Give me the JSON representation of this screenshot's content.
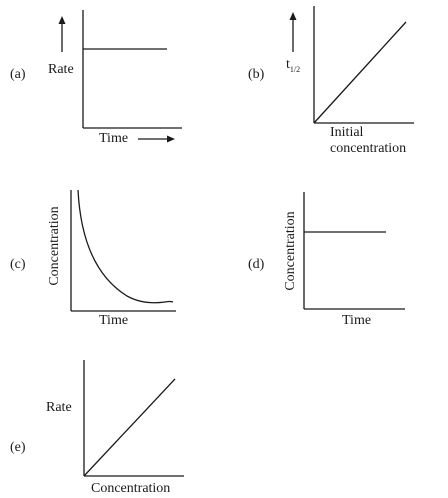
{
  "panels": [
    {
      "tag": "(a)",
      "y_label": "Rate",
      "x_label": "Time",
      "chart_data": {
        "type": "line",
        "shape": "constant",
        "ylabel": "Rate",
        "xlabel": "Time"
      }
    },
    {
      "tag": "(b)",
      "y_label": "t",
      "y_subscript": "1/2",
      "x_label_line1": "Initial",
      "x_label_line2": "concentration",
      "chart_data": {
        "type": "line",
        "shape": "increasing linear through origin",
        "ylabel": "t1/2",
        "xlabel": "Initial concentration"
      }
    },
    {
      "tag": "(c)",
      "y_label": "Concentration",
      "x_label": "Time",
      "chart_data": {
        "type": "line",
        "shape": "exponential decay",
        "ylabel": "Concentration",
        "xlabel": "Time"
      }
    },
    {
      "tag": "(d)",
      "y_label": "Concentration",
      "x_label": "Time",
      "chart_data": {
        "type": "line",
        "shape": "constant",
        "ylabel": "Concentration",
        "xlabel": "Time"
      }
    },
    {
      "tag": "(e)",
      "y_label": "Rate",
      "x_label": "Concentration",
      "chart_data": {
        "type": "line",
        "shape": "increasing linear through origin",
        "ylabel": "Rate",
        "xlabel": "Concentration"
      }
    }
  ]
}
